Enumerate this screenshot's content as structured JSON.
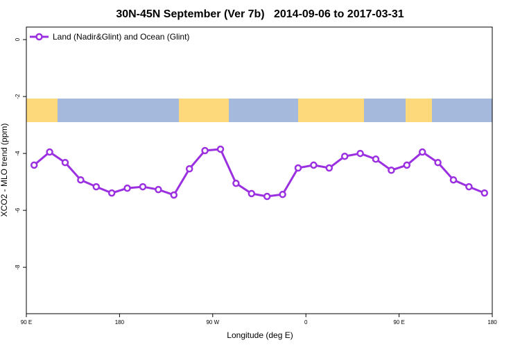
{
  "chart_data": {
    "type": "line",
    "title": "30N-45N September (Ver 7b)   2014-09-06 to 2017-03-31",
    "xlabel": "Longitude (deg E)",
    "ylabel": "XCO2 - MLO trend (ppm)",
    "x": [
      97.5,
      112.5,
      127.5,
      142.5,
      157.5,
      172.5,
      187.5,
      202.5,
      217.5,
      232.5,
      247.5,
      262.5,
      277.5,
      292.5,
      307.5,
      322.5,
      337.5,
      352.5,
      367.5,
      382.5,
      397.5,
      412.5,
      427.5,
      442.5,
      457.5,
      472.5,
      487.5,
      502.5,
      517.5,
      532.5
    ],
    "series": [
      {
        "name": "Land (Nadir&Glint) and Ocean (Glint)",
        "color": "#9b30e0",
        "values": [
          -4.41,
          -3.95,
          -4.32,
          -4.93,
          -5.17,
          -5.39,
          -5.22,
          -5.17,
          -5.27,
          -5.46,
          -4.54,
          -3.9,
          -3.85,
          -5.05,
          -5.41,
          -5.51,
          -5.44,
          -4.51,
          -4.41,
          -4.51,
          -4.1,
          -4.0,
          -4.2,
          -4.59,
          -4.41,
          -3.95,
          -4.32,
          -4.93,
          -5.17,
          -5.39
        ]
      }
    ],
    "xlim": [
      90,
      540
    ],
    "xticks": [
      {
        "value": 90,
        "label": "90 E"
      },
      180,
      {
        "value": 270,
        "label": "90 W"
      },
      {
        "value": 360,
        "label": "0"
      },
      {
        "value": 450,
        "label": "90 E"
      },
      {
        "value": 540,
        "label": "180"
      }
    ],
    "ylim": [
      -9.63,
      0.44
    ],
    "yticks": [
      0,
      -2,
      -4,
      -6,
      -8
    ],
    "legend": "top-left"
  }
}
